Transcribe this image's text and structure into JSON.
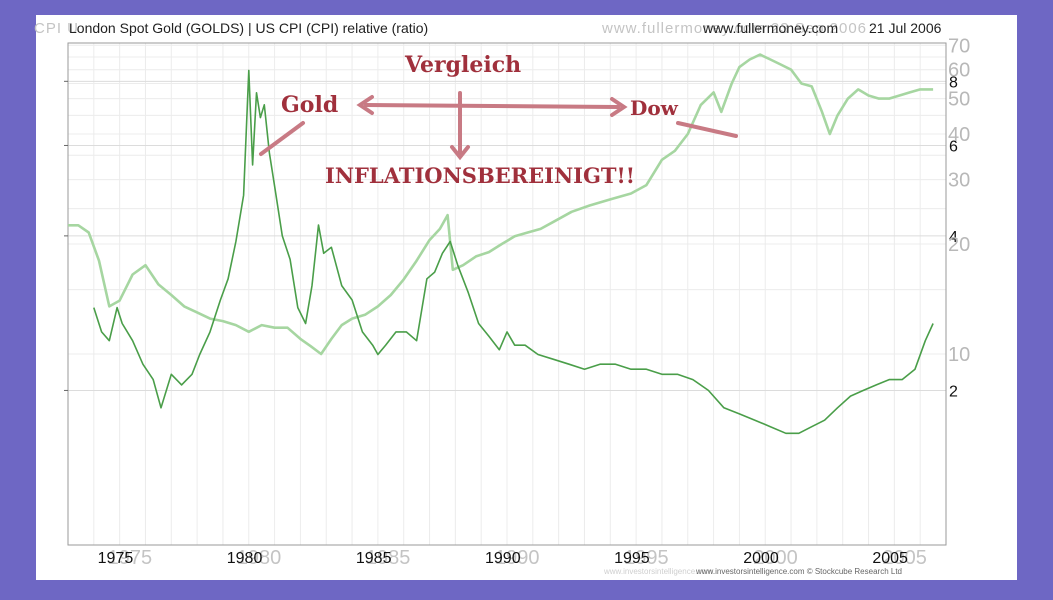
{
  "header": {
    "title": "London Spot Gold (GOLDS) | US CPI (CPI) relative (ratio)",
    "source": "www.fullermoney.com",
    "date": "21 Jul 2006",
    "ghost_left": "CPI U",
    "ghost_right": "www.fullermoney.com    23 Sep 2006"
  },
  "footer": {
    "credit": "www.investorsintelligence.com  © Stockcube Research Ltd",
    "ghost_credit": "www.investorsintelligence.com"
  },
  "annotations": {
    "vergleich": "Vergleich",
    "gold": "Gold",
    "dow": "Dow",
    "inflation": "INFLATIONSBEREINIGT!!"
  },
  "colors": {
    "gold_line": "#4a9e49",
    "dow_line": "#a6d6a1",
    "annotation": "#a0303c",
    "arrow": "#c87a84",
    "background": "#6e67c4"
  },
  "chart_data": {
    "type": "line",
    "x_ticks": [
      "1975",
      "1980",
      "1985",
      "1990",
      "1995",
      "2000",
      "2005"
    ],
    "y_ticks_gold": [
      "2",
      "4",
      "6",
      "8"
    ],
    "y_ticks_dow": [
      "10",
      "20",
      "30",
      "40",
      "50",
      "60",
      "70"
    ],
    "xlim": [
      1973,
      2007
    ],
    "ylim_gold": [
      1,
      9.5
    ],
    "ylim_dow": [
      3,
      71
    ],
    "log_scale": true,
    "grid": true,
    "series": [
      {
        "name": "Gold",
        "axis": "left",
        "x": [
          1974.0,
          1974.3,
          1974.6,
          1974.9,
          1975.1,
          1975.5,
          1975.9,
          1976.3,
          1976.6,
          1977.0,
          1977.4,
          1977.8,
          1978.1,
          1978.5,
          1978.9,
          1979.2,
          1979.5,
          1979.8,
          1980.0,
          1980.15,
          1980.3,
          1980.45,
          1980.6,
          1980.8,
          1981.0,
          1981.3,
          1981.6,
          1981.9,
          1982.2,
          1982.45,
          1982.7,
          1982.9,
          1983.2,
          1983.6,
          1984.0,
          1984.4,
          1984.8,
          1985.0,
          1985.3,
          1985.7,
          1986.1,
          1986.5,
          1986.9,
          1987.2,
          1987.5,
          1987.8,
          1988.1,
          1988.5,
          1988.9,
          1989.3,
          1989.7,
          1990.0,
          1990.3,
          1990.7,
          1991.2,
          1991.8,
          1992.4,
          1993.0,
          1993.6,
          1994.2,
          1994.8,
          1995.4,
          1996.0,
          1996.6,
          1997.2,
          1997.8,
          1998.4,
          1999.0,
          1999.6,
          2000.2,
          2000.8,
          2001.3,
          2001.8,
          2002.3,
          2002.8,
          2003.3,
          2003.8,
          2004.3,
          2004.8,
          2005.3,
          2005.8,
          2006.2,
          2006.5
        ],
        "y": [
          2.9,
          2.6,
          2.5,
          2.9,
          2.7,
          2.5,
          2.25,
          2.1,
          1.85,
          2.15,
          2.05,
          2.15,
          2.35,
          2.6,
          3.0,
          3.3,
          3.9,
          4.8,
          8.4,
          5.5,
          7.6,
          6.8,
          7.2,
          5.8,
          5.0,
          4.0,
          3.6,
          2.9,
          2.7,
          3.2,
          4.2,
          3.7,
          3.8,
          3.2,
          3.0,
          2.6,
          2.45,
          2.35,
          2.45,
          2.6,
          2.6,
          2.5,
          3.3,
          3.4,
          3.7,
          3.9,
          3.5,
          3.1,
          2.7,
          2.55,
          2.4,
          2.6,
          2.45,
          2.45,
          2.35,
          2.3,
          2.25,
          2.2,
          2.25,
          2.25,
          2.2,
          2.2,
          2.15,
          2.15,
          2.1,
          2.0,
          1.85,
          1.8,
          1.75,
          1.7,
          1.65,
          1.65,
          1.7,
          1.75,
          1.85,
          1.95,
          2.0,
          2.05,
          2.1,
          2.1,
          2.2,
          2.5,
          2.7
        ]
      },
      {
        "name": "Dow",
        "axis": "right",
        "x": [
          1973.0,
          1973.4,
          1973.8,
          1974.2,
          1974.6,
          1975.0,
          1975.5,
          1976.0,
          1976.5,
          1977.0,
          1977.5,
          1978.0,
          1978.5,
          1979.0,
          1979.5,
          1980.0,
          1980.5,
          1981.0,
          1981.5,
          1982.0,
          1982.4,
          1982.8,
          1983.2,
          1983.6,
          1984.0,
          1984.5,
          1985.0,
          1985.5,
          1986.0,
          1986.5,
          1987.0,
          1987.4,
          1987.7,
          1987.9,
          1988.3,
          1988.8,
          1989.3,
          1989.8,
          1990.3,
          1990.8,
          1991.3,
          1991.8,
          1992.5,
          1993.2,
          1994.0,
          1994.8,
          1995.4,
          1996.0,
          1996.5,
          1997.0,
          1997.5,
          1998.0,
          1998.3,
          1998.7,
          1999.0,
          1999.4,
          1999.8,
          2000.2,
          2000.6,
          2001.0,
          2001.4,
          2001.8,
          2002.2,
          2002.5,
          2002.8,
          2003.2,
          2003.6,
          2004.0,
          2004.4,
          2004.8,
          2005.2,
          2005.6,
          2006.0,
          2006.5
        ],
        "y": [
          22.5,
          22.5,
          21.5,
          18,
          13.5,
          14,
          16.5,
          17.5,
          15.5,
          14.5,
          13.5,
          13,
          12.5,
          12.3,
          12,
          11.5,
          12,
          11.8,
          11.8,
          11,
          10.5,
          10,
          11,
          12,
          12.5,
          12.8,
          13.5,
          14.5,
          16,
          18,
          20.5,
          22,
          24,
          17,
          17.5,
          18.5,
          19,
          20,
          21,
          21.5,
          22,
          23,
          24.5,
          25.5,
          26.5,
          27.5,
          29,
          34,
          36,
          40,
          48,
          52,
          46,
          55,
          61,
          64,
          66,
          64,
          62,
          60,
          55,
          54,
          46,
          40,
          45,
          50,
          53,
          51,
          50,
          50,
          51,
          52,
          53,
          53
        ]
      }
    ]
  }
}
